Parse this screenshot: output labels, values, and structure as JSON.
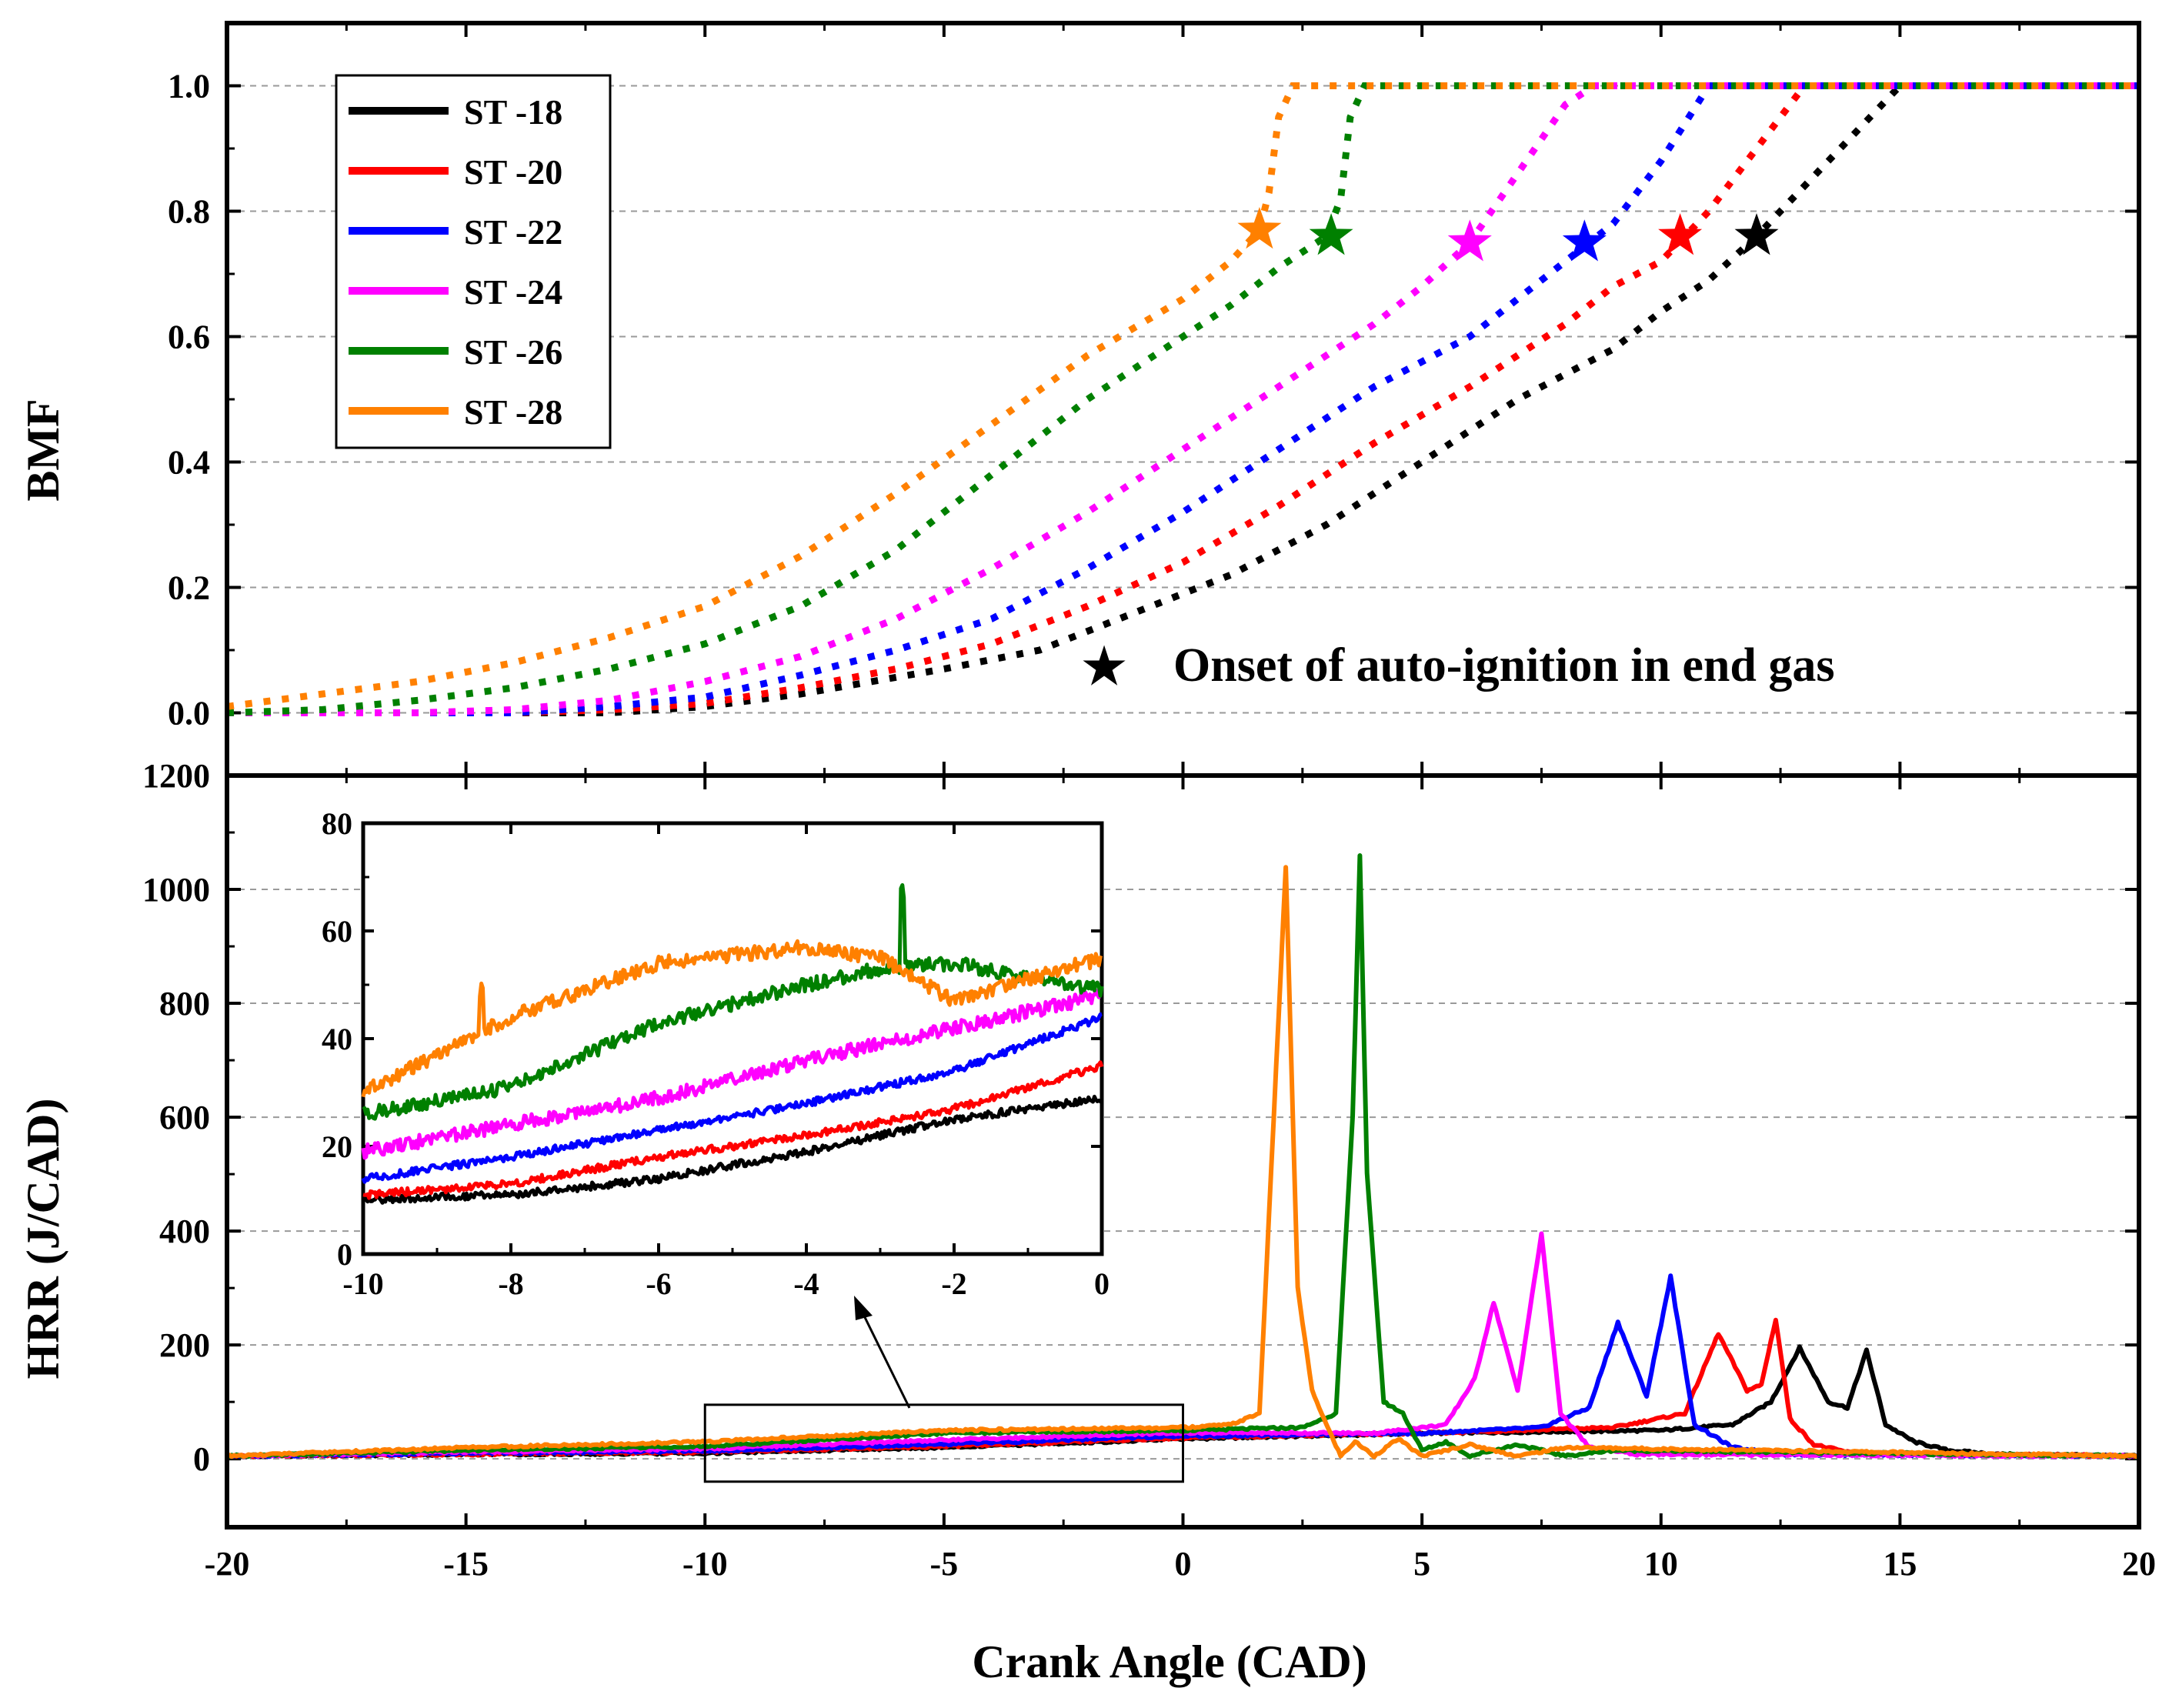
{
  "chart_data": [
    {
      "id": "bmf",
      "type": "line",
      "title": "",
      "xlabel": "Crank Angle (CAD)",
      "ylabel": "BMF",
      "xlim": [
        -20,
        20
      ],
      "ylim": [
        -0.1,
        1.1
      ],
      "yticks": [
        "0.0",
        "0.2",
        "0.4",
        "0.6",
        "0.8",
        "1.0"
      ],
      "line_style": "dotted",
      "grid": true,
      "legend_position": "top-left",
      "annotation": {
        "symbol": "★",
        "text": "Onset of auto-ignition in end gas"
      },
      "series": [
        {
          "name": "ST -18",
          "color": "#000000",
          "x": [
            -20,
            -15,
            -12,
            -10,
            -8,
            -5,
            -3,
            -1,
            1,
            3,
            5,
            7,
            9,
            10,
            11,
            12,
            13,
            14,
            15,
            20
          ],
          "y": [
            0,
            0,
            0,
            0.01,
            0.03,
            0.07,
            0.1,
            0.16,
            0.22,
            0.3,
            0.4,
            0.5,
            0.58,
            0.64,
            0.69,
            0.76,
            0.84,
            0.92,
            1.0,
            1.0
          ],
          "onset": [
            12.0,
            0.76
          ]
        },
        {
          "name": "ST -20",
          "color": "#ff0000",
          "x": [
            -20,
            -14,
            -12,
            -10,
            -8,
            -6,
            -4,
            -2,
            0,
            2,
            4,
            6,
            8,
            9,
            10,
            11,
            12,
            13,
            20
          ],
          "y": [
            0,
            0,
            0.005,
            0.015,
            0.04,
            0.07,
            0.11,
            0.17,
            0.24,
            0.33,
            0.43,
            0.52,
            0.62,
            0.68,
            0.72,
            0.8,
            0.9,
            1.0,
            1.0
          ],
          "onset": [
            10.4,
            0.76
          ]
        },
        {
          "name": "ST -22",
          "color": "#0000ff",
          "x": [
            -20,
            -14,
            -12,
            -10,
            -8,
            -6,
            -4,
            -2,
            0,
            2,
            4,
            6,
            7,
            8,
            9,
            10,
            11,
            20
          ],
          "y": [
            0,
            0,
            0.01,
            0.025,
            0.06,
            0.1,
            0.15,
            0.23,
            0.32,
            0.42,
            0.52,
            0.6,
            0.66,
            0.72,
            0.78,
            0.88,
            1.0,
            1.0
          ],
          "onset": [
            8.4,
            0.75
          ]
        },
        {
          "name": "ST -24",
          "color": "#ff00ff",
          "x": [
            -20,
            -16,
            -14,
            -12,
            -10,
            -8,
            -6,
            -4,
            -2,
            0,
            2,
            4,
            5,
            6,
            7,
            8,
            8.6,
            20
          ],
          "y": [
            0,
            0,
            0.005,
            0.02,
            0.05,
            0.09,
            0.15,
            0.23,
            0.32,
            0.42,
            0.52,
            0.62,
            0.68,
            0.75,
            0.86,
            0.97,
            1.0,
            1.0
          ],
          "onset": [
            6.0,
            0.75
          ]
        },
        {
          "name": "ST -26",
          "color": "#008000",
          "x": [
            -20,
            -18,
            -16,
            -14,
            -12,
            -10,
            -8,
            -6,
            -4,
            -2,
            0,
            1,
            2,
            3,
            3.3,
            3.5,
            3.8,
            20
          ],
          "y": [
            0,
            0.005,
            0.02,
            0.04,
            0.07,
            0.11,
            0.17,
            0.26,
            0.38,
            0.5,
            0.6,
            0.65,
            0.71,
            0.76,
            0.82,
            0.95,
            1.0,
            1.0
          ],
          "onset": [
            3.1,
            0.76
          ]
        },
        {
          "name": "ST -28",
          "color": "#ff8000",
          "x": [
            -20,
            -18,
            -16,
            -14,
            -12,
            -10,
            -8,
            -6,
            -4,
            -2,
            0,
            1,
            1.6,
            1.8,
            2.0,
            2.3,
            20
          ],
          "y": [
            0.01,
            0.03,
            0.05,
            0.08,
            0.12,
            0.17,
            0.25,
            0.35,
            0.46,
            0.57,
            0.66,
            0.72,
            0.77,
            0.83,
            0.95,
            1.0,
            1.0
          ],
          "onset": [
            1.6,
            0.77
          ]
        }
      ]
    },
    {
      "id": "hrr",
      "type": "line",
      "title": "",
      "xlabel": "Crank Angle (CAD)",
      "ylabel": "HRR (J/CAD)",
      "xlim": [
        -20,
        20
      ],
      "ylim": [
        -120,
        1200
      ],
      "xticks": [
        "-20",
        "-15",
        "-10",
        "-5",
        "0",
        "5",
        "10",
        "15",
        "20"
      ],
      "yticks": [
        "0",
        "200",
        "400",
        "600",
        "800",
        "1000",
        "1200"
      ],
      "grid": true,
      "series": [
        {
          "name": "ST -18",
          "color": "#000000",
          "x": [
            -20,
            -15,
            -10,
            -5,
            0,
            5,
            10,
            11.5,
            12.3,
            12.9,
            13.5,
            13.9,
            14.3,
            14.7,
            15.3,
            16,
            17,
            20
          ],
          "y": [
            5,
            8,
            10,
            20,
            35,
            45,
            50,
            60,
            100,
            195,
            100,
            90,
            190,
            60,
            30,
            15,
            8,
            5
          ]
        },
        {
          "name": "ST -20",
          "color": "#ff0000",
          "x": [
            -20,
            -15,
            -10,
            -5,
            0,
            5,
            9,
            10.5,
            11.2,
            11.8,
            12.1,
            12.4,
            12.7,
            13.2,
            14,
            20
          ],
          "y": [
            5,
            8,
            12,
            22,
            37,
            45,
            55,
            80,
            220,
            120,
            130,
            245,
            70,
            25,
            10,
            5
          ]
        },
        {
          "name": "ST -22",
          "color": "#0000ff",
          "x": [
            -20,
            -15,
            -10,
            -5,
            0,
            5,
            7.5,
            8.5,
            9.1,
            9.7,
            10.2,
            10.7,
            11.5,
            12.5,
            20
          ],
          "y": [
            5,
            10,
            14,
            26,
            40,
            45,
            55,
            90,
            240,
            110,
            320,
            60,
            20,
            8,
            5
          ]
        },
        {
          "name": "ST -24",
          "color": "#ff00ff",
          "x": [
            -20,
            -15,
            -10,
            -5,
            0,
            4,
            5.5,
            6.1,
            6.5,
            7.0,
            7.5,
            7.9,
            8.5,
            9.5,
            20
          ],
          "y": [
            5,
            12,
            18,
            33,
            46,
            45,
            60,
            140,
            275,
            120,
            395,
            80,
            20,
            8,
            5
          ]
        },
        {
          "name": "ST -26",
          "color": "#008000",
          "x": [
            -20,
            -15,
            -10,
            -5,
            0,
            2.5,
            3.2,
            3.55,
            3.7,
            3.85,
            4.2,
            4.6,
            5,
            5.5,
            6,
            7,
            8,
            9,
            20
          ],
          "y": [
            5,
            15,
            22,
            45,
            50,
            55,
            80,
            600,
            1060,
            500,
            100,
            80,
            15,
            30,
            5,
            25,
            5,
            15,
            5
          ]
        },
        {
          "name": "ST -28",
          "color": "#ff8000",
          "x": [
            -20,
            -15,
            -10,
            -5,
            0,
            1,
            1.6,
            1.9,
            2.15,
            2.4,
            2.7,
            3.0,
            3.3,
            3.6,
            4.0,
            4.5,
            5,
            6,
            7,
            8,
            20
          ],
          "y": [
            5,
            20,
            30,
            50,
            55,
            60,
            80,
            600,
            1040,
            300,
            120,
            60,
            5,
            30,
            5,
            35,
            5,
            25,
            5,
            20,
            5
          ]
        }
      ]
    },
    {
      "id": "hrr-inset",
      "type": "line",
      "title": "",
      "xlim": [
        -10,
        0
      ],
      "ylim": [
        0,
        80
      ],
      "xticks": [
        "-10",
        "-8",
        "-6",
        "-4",
        "-2",
        "0"
      ],
      "yticks": [
        "0",
        "20",
        "40",
        "60",
        "80"
      ],
      "series": [
        {
          "name": "ST -18",
          "color": "#000000",
          "x": [
            -10,
            -8,
            -6,
            -4,
            -2,
            0
          ],
          "y": [
            10,
            11,
            14,
            19,
            25,
            29
          ]
        },
        {
          "name": "ST -20",
          "color": "#ff0000",
          "x": [
            -10,
            -8,
            -6,
            -4,
            -2,
            0
          ],
          "y": [
            11,
            13,
            18,
            22,
            27,
            35
          ]
        },
        {
          "name": "ST -22",
          "color": "#0000ff",
          "x": [
            -10,
            -8,
            -6,
            -4,
            -2,
            0
          ],
          "y": [
            14,
            18,
            23,
            28,
            34,
            44
          ]
        },
        {
          "name": "ST -24",
          "color": "#ff00ff",
          "x": [
            -10,
            -8,
            -6,
            -4,
            -2,
            0
          ],
          "y": [
            19,
            24,
            29,
            36,
            42,
            48
          ]
        },
        {
          "name": "ST -26",
          "color": "#008000",
          "x": [
            -10,
            -8,
            -6,
            -4,
            -3,
            -2,
            0
          ],
          "y": [
            26,
            31,
            43,
            50,
            53,
            54,
            49
          ]
        },
        {
          "name": "ST -28",
          "color": "#ff8000",
          "x": [
            -10,
            -8,
            -6,
            -4,
            -3,
            -2,
            0
          ],
          "y": [
            30,
            44,
            54,
            57,
            55,
            47,
            55
          ]
        }
      ]
    }
  ]
}
